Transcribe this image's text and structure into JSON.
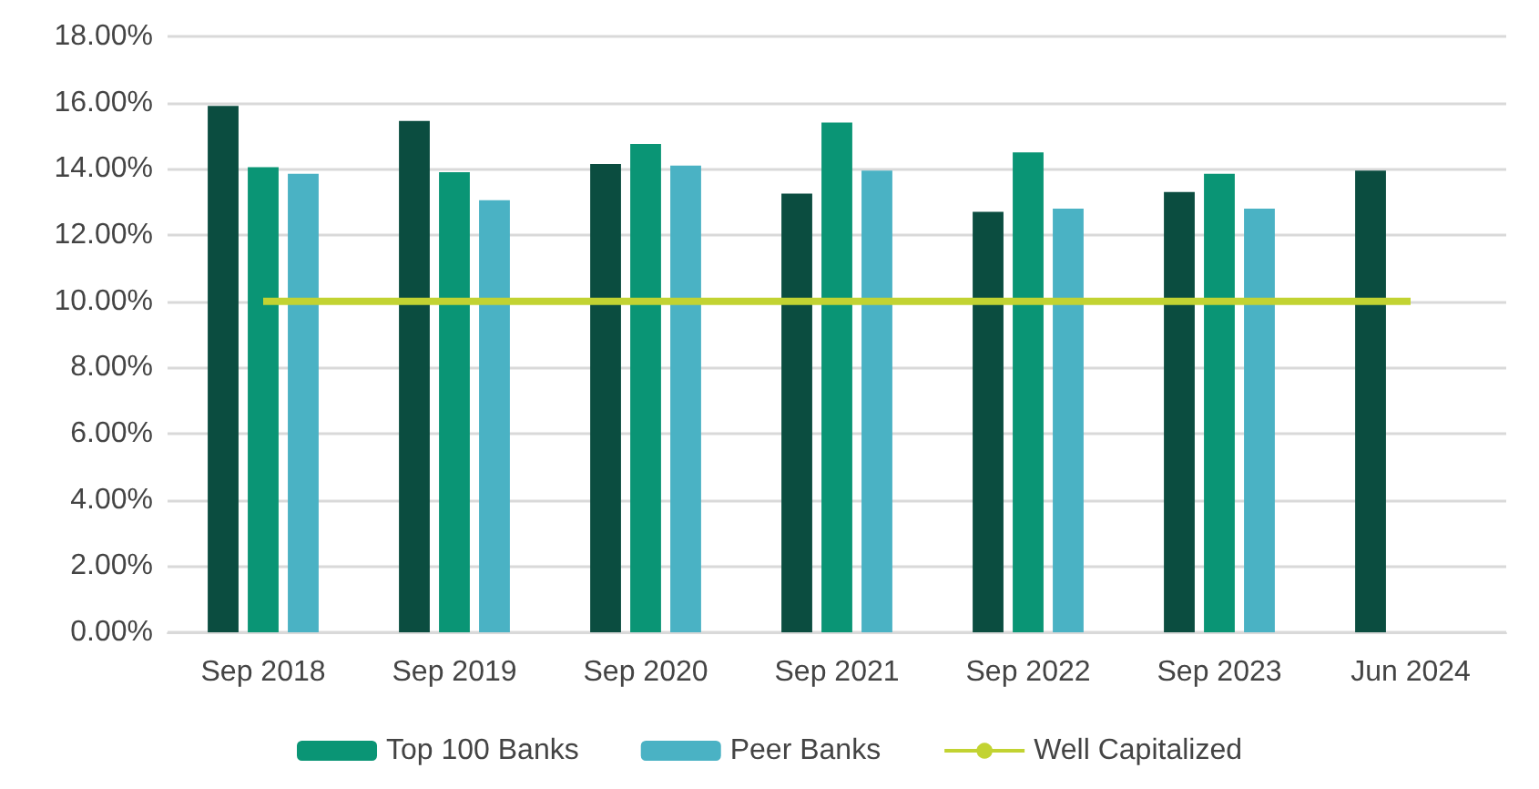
{
  "chart_data": {
    "type": "bar",
    "categories": [
      "Sep 2018",
      "Sep 2019",
      "Sep 2020",
      "Sep 2021",
      "Sep 2022",
      "Sep 2023",
      "Jun 2024"
    ],
    "series": [
      {
        "color": "#0b4d40",
        "values": [
          15.9,
          15.45,
          14.15,
          13.25,
          12.7,
          13.3,
          13.95
        ]
      },
      {
        "name": "Top 100 Banks",
        "color": "#0a9575",
        "values": [
          14.05,
          13.9,
          14.75,
          15.4,
          14.5,
          13.85,
          null
        ]
      },
      {
        "name": "Peer Banks",
        "color": "#4ab2c4",
        "values": [
          13.85,
          13.05,
          14.1,
          13.95,
          12.8,
          12.8,
          null
        ]
      },
      {
        "name": "Well Capitalized",
        "type": "line",
        "color": "#c2d332",
        "values": [
          10,
          10,
          10,
          10,
          10,
          10,
          10
        ]
      }
    ],
    "ylim": [
      0,
      18
    ],
    "yticks": [
      {
        "value": 0,
        "label": "0.00%"
      },
      {
        "value": 2,
        "label": "2.00%"
      },
      {
        "value": 4,
        "label": "4.00%"
      },
      {
        "value": 6,
        "label": "6.00%"
      },
      {
        "value": 8,
        "label": "8.00%"
      },
      {
        "value": 10,
        "label": "10.00%"
      },
      {
        "value": 12,
        "label": "12.00%"
      },
      {
        "value": 14,
        "label": "14.00%"
      },
      {
        "value": 16,
        "label": "16.00%"
      },
      {
        "value": 18,
        "label": "18.00%"
      }
    ],
    "grid": "y",
    "legend": "bottom",
    "marker": "none",
    "line_style": "solid"
  }
}
